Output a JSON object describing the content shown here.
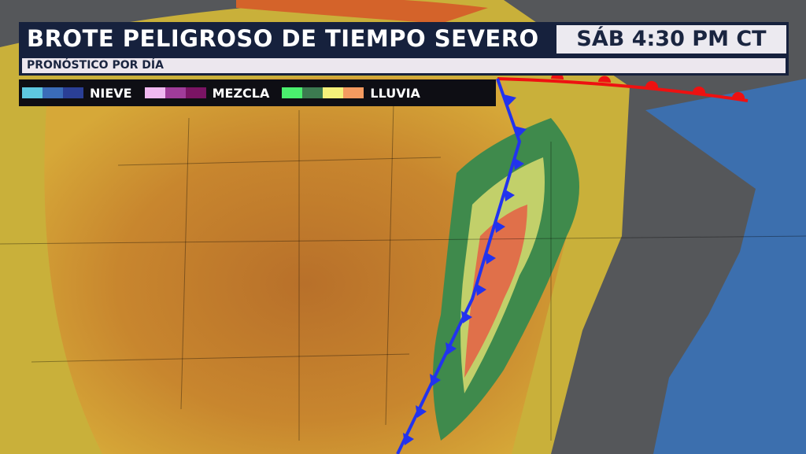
{
  "header": {
    "title": "BROTE PELIGROSO DE TIEMPO SEVERO",
    "time": "SÁB 4:30 PM CT",
    "subtitle": "PRONÓSTICO POR DÍA"
  },
  "legend": [
    {
      "label": "NIEVE",
      "colors": [
        "#5ec8e0",
        "#3a6cb8",
        "#2a3f96"
      ]
    },
    {
      "label": "MEZCLA",
      "colors": [
        "#f0b8f0",
        "#a03c9a",
        "#7a1464"
      ]
    },
    {
      "label": "LLUVIA",
      "colors": [
        "#4aef6e",
        "#3c7a50",
        "#f4f07a",
        "#f49a60"
      ]
    }
  ],
  "fronts": {
    "cold_front_color": "#2233ee",
    "warm_front_color": "#ee1111"
  }
}
